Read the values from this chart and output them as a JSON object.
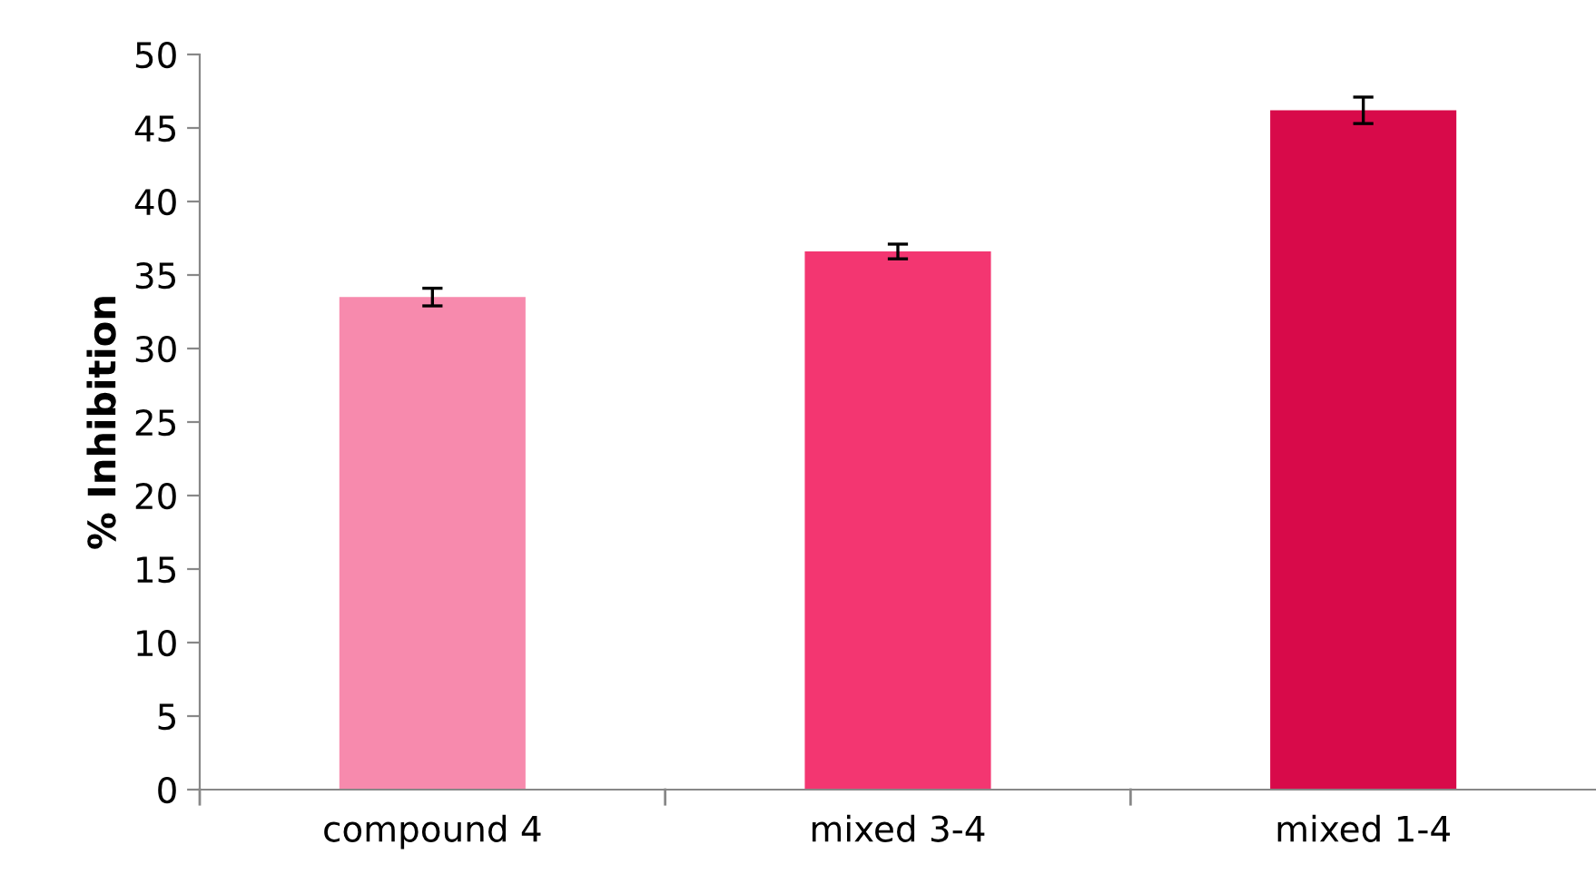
{
  "chart_data": {
    "type": "bar",
    "ylabel": "% Inhibition",
    "categories": [
      "compound 4",
      "mixed 3-4",
      "mixed 1-4"
    ],
    "values": [
      33.5,
      36.6,
      46.2
    ],
    "errors": [
      0.6,
      0.5,
      0.9
    ],
    "colors": [
      "#f78aad",
      "#f33671",
      "#d80a4a"
    ],
    "ylim": [
      0,
      50
    ],
    "yticks": [
      0,
      5,
      10,
      15,
      20,
      25,
      30,
      35,
      40,
      45,
      50
    ],
    "grid": false,
    "legend": false
  }
}
